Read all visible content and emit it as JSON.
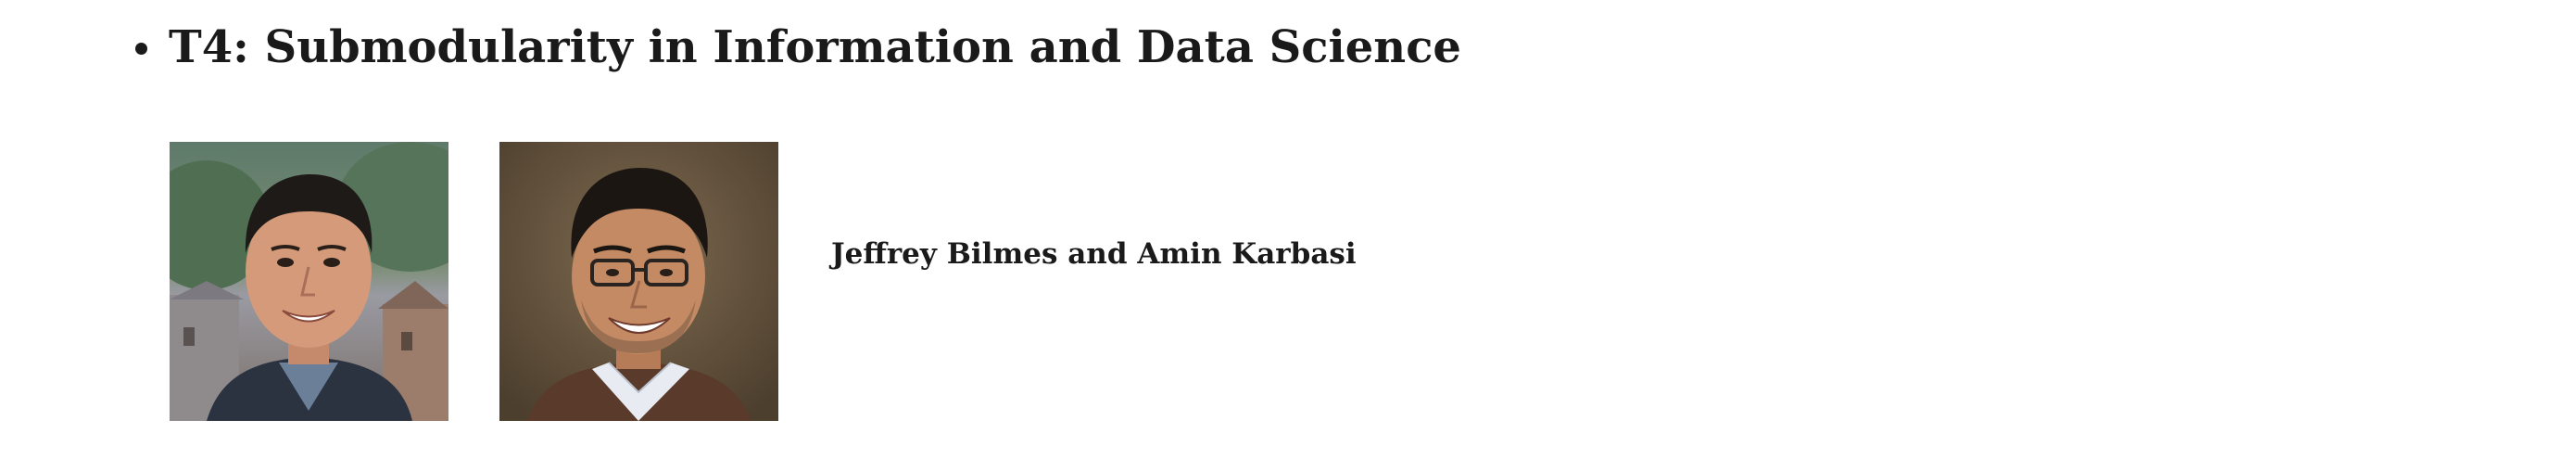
{
  "tutorial": {
    "title": "T4: Submodularity in Information and Data Science",
    "speakers": "Jeffrey Bilmes and Amin Karbasi"
  },
  "photos": [
    {
      "name": "speaker-photo-jeffrey-bilmes",
      "icon": "portrait"
    },
    {
      "name": "speaker-photo-amin-karbasi",
      "icon": "portrait"
    }
  ]
}
